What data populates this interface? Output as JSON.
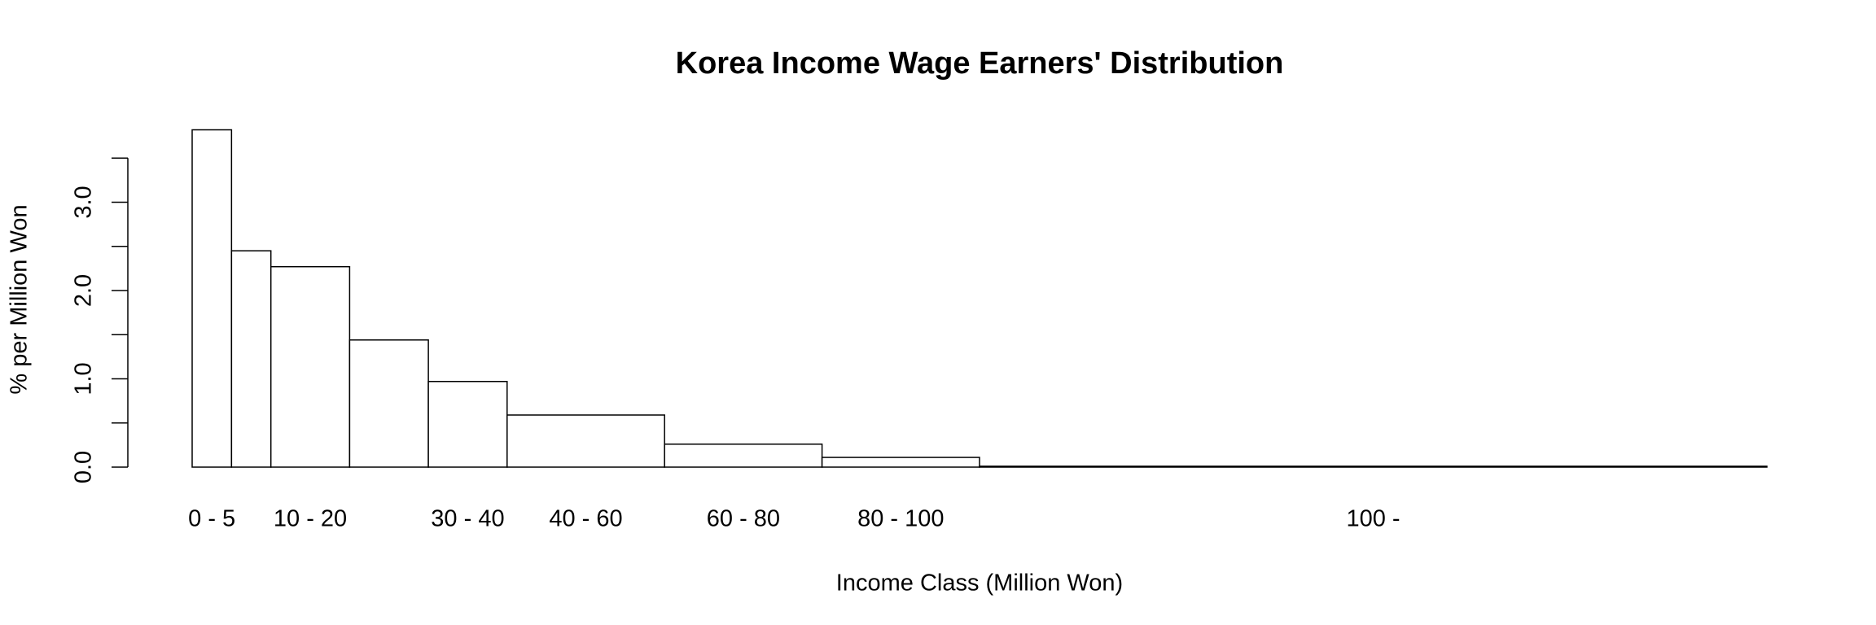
{
  "chart_data": {
    "type": "histogram",
    "title": "Korea Income Wage Earners' Distribution",
    "x_label": "Income Class (Million Won)",
    "y_label": "% per Million Won",
    "bins": [
      0,
      5,
      10,
      20,
      30,
      40,
      60,
      80,
      100,
      200
    ],
    "counts": [
      3.82,
      2.45,
      2.27,
      1.44,
      0.97,
      0.59,
      0.26,
      0.11,
      0.01
    ],
    "categories": [
      "0 - 5",
      null,
      "10 - 20",
      null,
      "30 - 40",
      "40 - 60",
      "60 - 80",
      "80 - 100",
      "100 -"
    ],
    "color": "#ffffff",
    "ylim": [
      0,
      4
    ],
    "yticks": [
      {
        "value": 0,
        "label": "0.0"
      },
      {
        "value": 0.5,
        "label": null
      },
      {
        "value": 1,
        "label": "1.0"
      },
      {
        "value": 1.5,
        "label": null
      },
      {
        "value": 2,
        "label": "2.0"
      },
      {
        "value": 2.5,
        "label": null
      },
      {
        "value": 3,
        "label": "3.0"
      },
      {
        "value": 3.5,
        "label": null
      }
    ]
  }
}
